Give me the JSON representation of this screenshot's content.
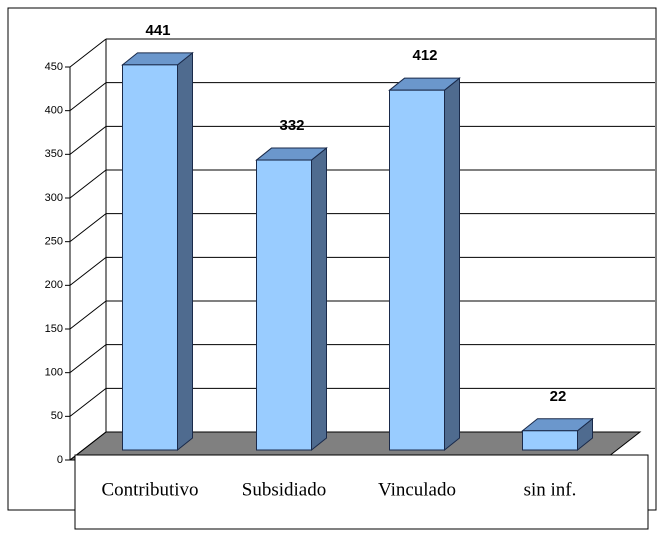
{
  "chart_data": {
    "type": "bar3d",
    "categories": [
      "Contributivo",
      "Subsidiado",
      "Vinculado",
      "sin inf."
    ],
    "values": [
      441,
      332,
      412,
      22
    ],
    "color": "#99ccff",
    "ylim": [
      0,
      450
    ],
    "yticks": [
      0,
      50,
      100,
      150,
      200,
      250,
      300,
      350,
      400,
      450
    ],
    "grid": true
  }
}
